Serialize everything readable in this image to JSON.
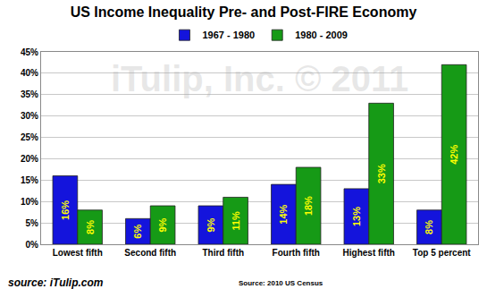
{
  "chart_data": {
    "type": "bar",
    "title": "US Income Inequality Pre- and Post-FIRE Economy",
    "categories": [
      "Lowest fifth",
      "Second fifth",
      "Third fifth",
      "Fourth fifth",
      "Highest fifth",
      "Top 5 percent"
    ],
    "series": [
      {
        "name": "1967 - 1980",
        "color": "#1414dc",
        "values": [
          16,
          6,
          9,
          14,
          13,
          8
        ],
        "value_labels": [
          "16%",
          "6%",
          "9%",
          "14%",
          "13%",
          "8%"
        ]
      },
      {
        "name": "1980 - 2009",
        "color": "#169a16",
        "values": [
          8,
          9,
          11,
          18,
          33,
          42
        ],
        "value_labels": [
          "8%",
          "9%",
          "11%",
          "18%",
          "33%",
          "42%"
        ]
      }
    ],
    "ylim": [
      0,
      45
    ],
    "yticks": [
      {
        "value": 0,
        "label": "0%"
      },
      {
        "value": 5,
        "label": "5%"
      },
      {
        "value": 10,
        "label": "10%"
      },
      {
        "value": 15,
        "label": "15%"
      },
      {
        "value": 20,
        "label": "20%"
      },
      {
        "value": 25,
        "label": "25%"
      },
      {
        "value": 30,
        "label": "30%"
      },
      {
        "value": 35,
        "label": "35%"
      },
      {
        "value": 40,
        "label": "40%"
      },
      {
        "value": 45,
        "label": "45%"
      }
    ],
    "grid": true,
    "legend": "top",
    "data_labels": true,
    "annotations": [
      "iTulip, Inc. © 2011",
      "Source: 2010 US Census",
      "source: iTulip.com"
    ]
  }
}
